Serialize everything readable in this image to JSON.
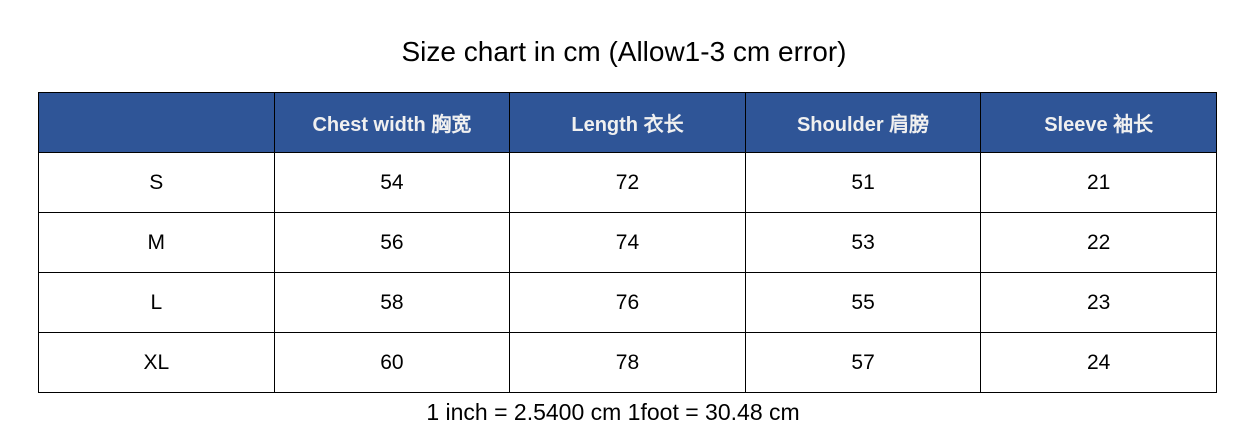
{
  "title": "Size chart in cm (Allow1-3 cm error)",
  "header_color": "#2f5597",
  "columns": [
    "",
    "Chest width  胸宽",
    "Length  衣长",
    "Shoulder  肩膀",
    "Sleeve  袖长"
  ],
  "rows": [
    [
      "S",
      "54",
      "72",
      "51",
      "21"
    ],
    [
      "M",
      "56",
      "74",
      "53",
      "22"
    ],
    [
      "L",
      "58",
      "76",
      "55",
      "23"
    ],
    [
      "XL",
      "60",
      "78",
      "57",
      "24"
    ]
  ],
  "footer": "1 inch = 2.5400 cm 1foot = 30.48 cm"
}
